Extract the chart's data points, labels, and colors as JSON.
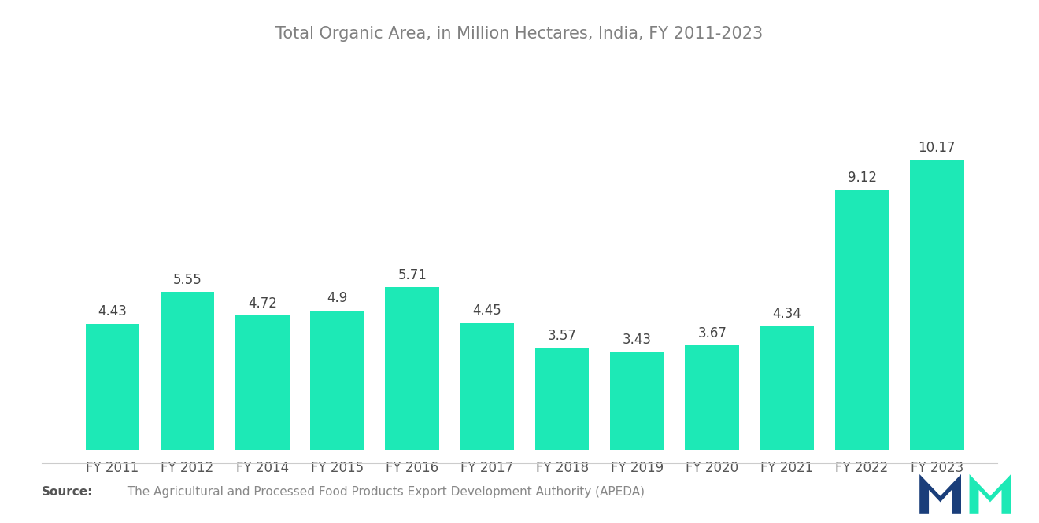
{
  "title": "Total Organic Area, in Million Hectares, India, FY 2011-2023",
  "categories": [
    "FY 2011",
    "FY 2012",
    "FY 2014",
    "FY 2015",
    "FY 2016",
    "FY 2017",
    "FY 2018",
    "FY 2019",
    "FY 2020",
    "FY 2021",
    "FY 2022",
    "FY 2023"
  ],
  "values": [
    4.43,
    5.55,
    4.72,
    4.9,
    5.71,
    4.45,
    3.57,
    3.43,
    3.67,
    4.34,
    9.12,
    10.17
  ],
  "bar_color": "#1DE9B6",
  "background_color": "#ffffff",
  "title_fontsize": 15,
  "label_fontsize": 12,
  "value_fontsize": 12,
  "source_bold": "Source:",
  "source_text": "  The Agricultural and Processed Food Products Export Development Authority (APEDA)",
  "source_fontsize": 11,
  "ylim": [
    0,
    12.5
  ],
  "bar_width": 0.72,
  "title_color": "#808080",
  "label_color": "#555555",
  "value_color": "#444444"
}
